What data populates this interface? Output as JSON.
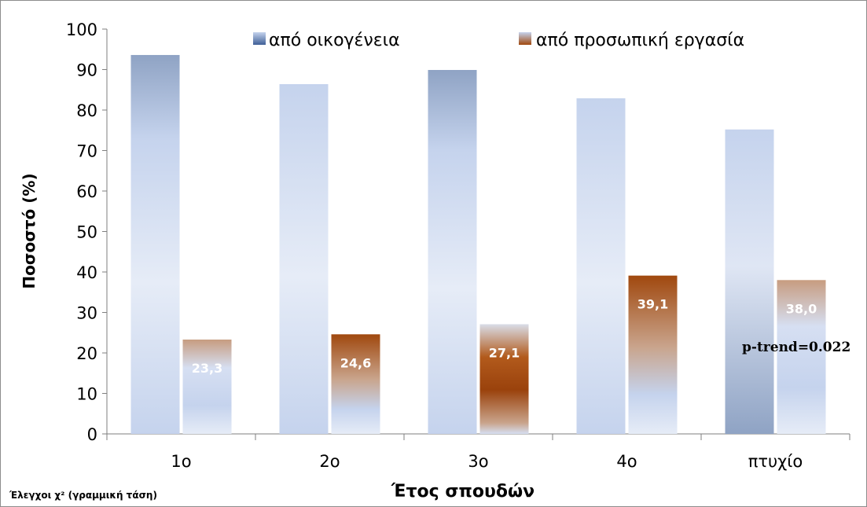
{
  "chart_data": {
    "type": "bar",
    "categories": [
      "1ο",
      "2ο",
      "3ο",
      "4ο",
      "πτυχίο"
    ],
    "series": [
      {
        "name": "από οικογένεια",
        "values": [
          93.6,
          86.4,
          89.9,
          82.9,
          75.2
        ],
        "data_labels": [
          "",
          "",
          "",
          "",
          ""
        ]
      },
      {
        "name": "από προσωπική εργασία",
        "values": [
          23.3,
          24.6,
          27.1,
          39.1,
          38.0
        ],
        "data_labels": [
          "23,3",
          "24,6",
          "27,1",
          "39,1",
          "38,0"
        ]
      }
    ],
    "ylabel": "Ποσοστό (%)",
    "xlabel": "Έτος σπουδών",
    "ylim": [
      0,
      100
    ],
    "yticks": [
      0,
      10,
      20,
      30,
      40,
      50,
      60,
      70,
      80,
      90,
      100
    ],
    "legend_position": "top",
    "annotation": "p-trend=0.022",
    "footnote": "Έλεγχοι χ² (γραμμική τάση)",
    "colors": {
      "family_light": "#c5d3ed",
      "family_dark": "#8fa3c4",
      "work_dark": "#a0480e",
      "work_mid": "#c4906a",
      "work_light": "#d6dff2"
    }
  }
}
